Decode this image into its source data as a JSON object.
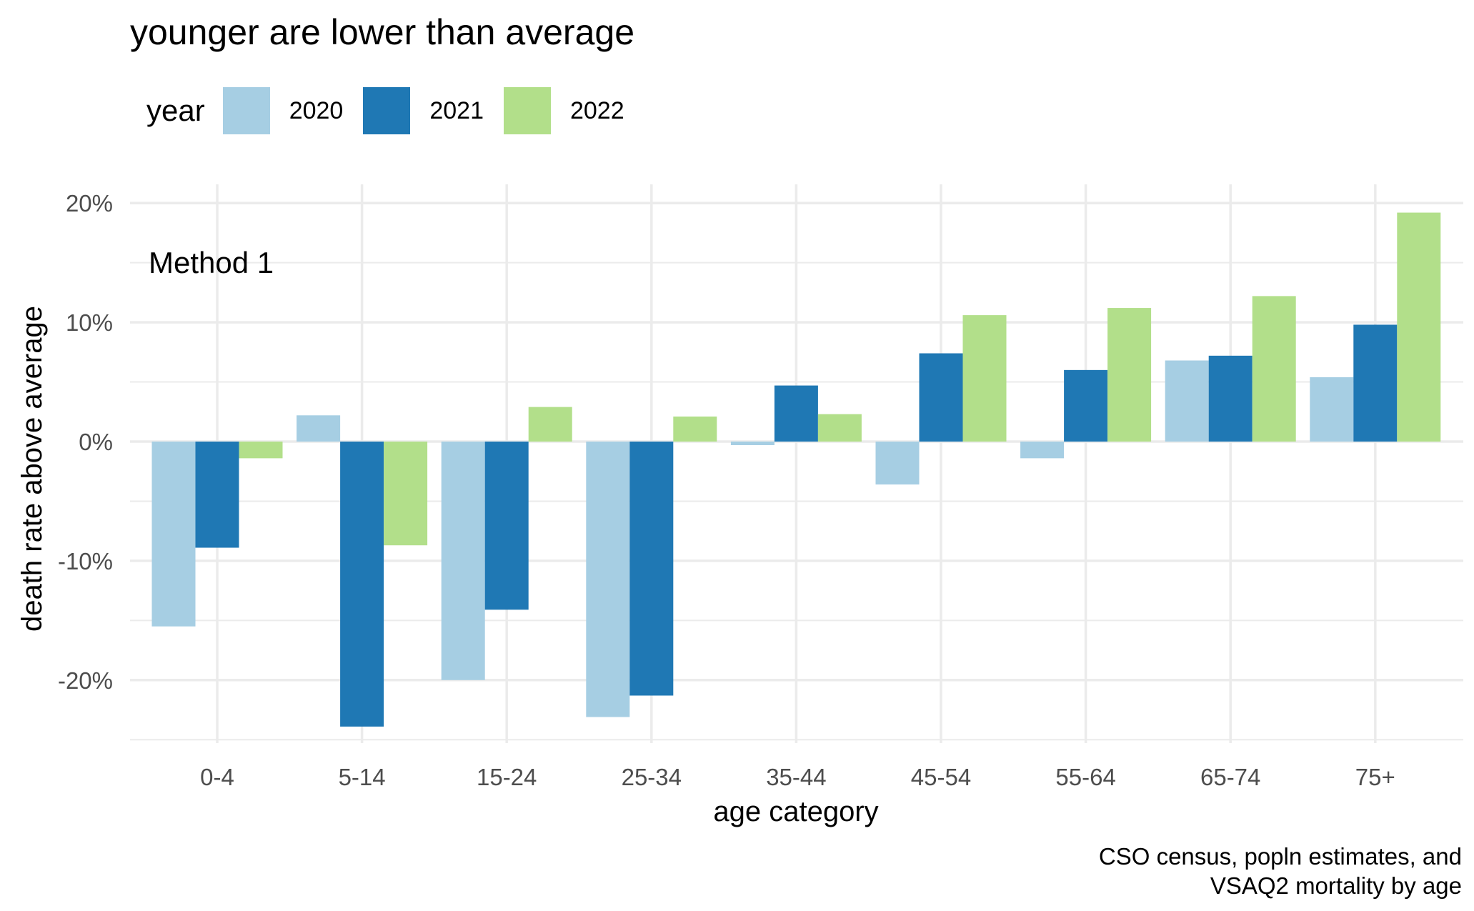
{
  "chart_data": {
    "type": "bar",
    "title": "younger are lower than average",
    "xlabel": "age category",
    "ylabel": "death rate above average",
    "annotation": "Method 1",
    "caption": [
      "CSO census, popln estimates, and",
      "VSAQ2 mortality by age"
    ],
    "legend_title": "year",
    "legend_position": "top-left",
    "grid": true,
    "categories": [
      "0-4",
      "5-14",
      "15-24",
      "25-34",
      "35-44",
      "45-54",
      "55-64",
      "65-74",
      "75+"
    ],
    "series": [
      {
        "name": "2020",
        "color": "#a6cee3",
        "values": [
          -15.5,
          2.2,
          -20.0,
          -23.1,
          -0.3,
          -3.6,
          -1.4,
          6.8,
          5.4
        ]
      },
      {
        "name": "2021",
        "color": "#1f78b4",
        "values": [
          -8.9,
          -23.9,
          -14.1,
          -21.3,
          4.7,
          7.4,
          6.0,
          7.2,
          9.8
        ]
      },
      {
        "name": "2022",
        "color": "#b2df8a",
        "values": [
          -1.4,
          -8.7,
          2.9,
          2.1,
          2.3,
          10.6,
          11.2,
          12.2,
          19.2
        ]
      }
    ],
    "ylim": [
      -25.5,
      20.5
    ],
    "yticks": [
      20,
      10,
      0,
      -10,
      -20
    ],
    "ytick_labels": [
      "20%",
      "10%",
      "0%",
      "-10%",
      "-20%"
    ]
  }
}
